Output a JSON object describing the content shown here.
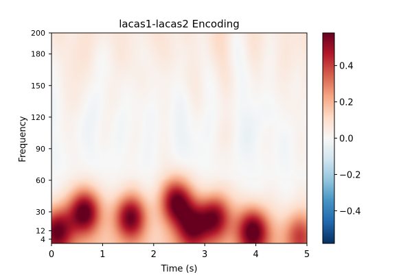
{
  "chart_data": {
    "type": "heatmap",
    "title": "lacas1-lacas2 Encoding",
    "xlabel": "Time (s)",
    "ylabel": "Frequency",
    "x_ticks": [
      0,
      1,
      2,
      3,
      4,
      5
    ],
    "y_ticks": [
      4,
      12,
      30,
      60,
      90,
      120,
      150,
      180,
      200
    ],
    "x_range": [
      0,
      5
    ],
    "y_range": [
      0,
      200
    ],
    "colormap": "RdBu_r",
    "colorbar": {
      "range": [
        -0.58,
        0.58
      ],
      "ticks": [
        -0.4,
        -0.2,
        0.0,
        0.2,
        0.4
      ],
      "tick_labels": [
        "−0.4",
        "−0.2",
        "0.0",
        "0.2",
        "0.4"
      ]
    },
    "low_frequency_peaks": [
      {
        "time": 0.1,
        "freq": 12,
        "value": 0.5
      },
      {
        "time": 0.65,
        "freq": 30,
        "value": 0.56
      },
      {
        "time": 1.55,
        "freq": 25,
        "value": 0.52
      },
      {
        "time": 2.45,
        "freq": 40,
        "value": 0.55
      },
      {
        "time": 2.75,
        "freq": 15,
        "value": 0.45
      },
      {
        "time": 3.2,
        "freq": 25,
        "value": 0.48
      },
      {
        "time": 3.95,
        "freq": 12,
        "value": 0.55
      },
      {
        "time": 4.85,
        "freq": 8,
        "value": 0.3
      }
    ]
  },
  "colors": {
    "neg_extreme": "#053061",
    "zero": "#f7f7f7",
    "pos_extreme": "#67001f"
  }
}
